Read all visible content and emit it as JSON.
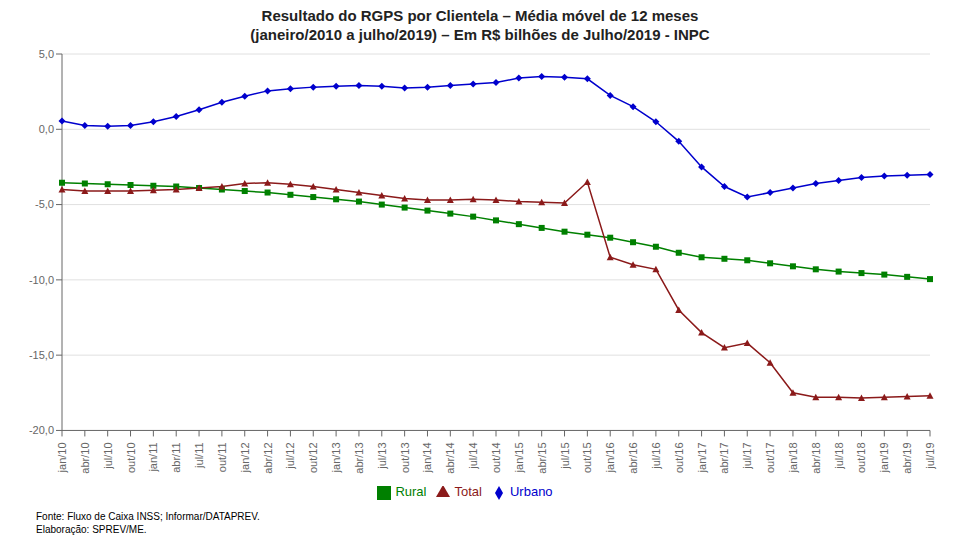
{
  "chart_data": {
    "type": "line",
    "title": "Resultado do RGPS por Clientela – Média móvel de 12 meses",
    "subtitle": "(janeiro/2010 a julho/2019) – Em R$ bilhões de Julho/2019 - INPC",
    "annotations": [
      "Fonte: Fluxo de Caixa INSS; Informar/DATAPREV.",
      "Elaboração: SPREV/ME."
    ],
    "categories": [
      "jan/10",
      "abr/10",
      "jul/10",
      "out/10",
      "jan/11",
      "abr/11",
      "jul/11",
      "out/11",
      "jan/12",
      "abr/12",
      "jul/12",
      "out/12",
      "jan/13",
      "abr/13",
      "jul/13",
      "out/13",
      "jan/14",
      "abr/14",
      "jul/14",
      "out/14",
      "jan/15",
      "abr/15",
      "jul/15",
      "out/15",
      "jan/16",
      "abr/16",
      "jul/16",
      "out/16",
      "jan/17",
      "abr/17",
      "jul/17",
      "out/17",
      "jan/18",
      "abr/18",
      "jul/18",
      "out/18",
      "jan/19",
      "abr/19",
      "jul/19"
    ],
    "series": [
      {
        "name": "Rural",
        "color": "#008000",
        "marker": "square",
        "values": [
          -3.55,
          -3.6,
          -3.65,
          -3.7,
          -3.75,
          -3.8,
          -3.9,
          -4.0,
          -4.1,
          -4.2,
          -4.35,
          -4.5,
          -4.65,
          -4.8,
          -5.0,
          -5.2,
          -5.4,
          -5.6,
          -5.8,
          -6.05,
          -6.3,
          -6.55,
          -6.8,
          -7.0,
          -7.2,
          -7.5,
          -7.8,
          -8.2,
          -8.5,
          -8.6,
          -8.7,
          -8.9,
          -9.1,
          -9.3,
          -9.45,
          -9.55,
          -9.65,
          -9.8,
          -9.95
        ]
      },
      {
        "name": "Total",
        "color": "#8B1A1A",
        "marker": "triangle",
        "values": [
          -4.0,
          -4.1,
          -4.1,
          -4.1,
          -4.05,
          -4.0,
          -3.9,
          -3.8,
          -3.6,
          -3.55,
          -3.65,
          -3.8,
          -4.0,
          -4.2,
          -4.4,
          -4.6,
          -4.7,
          -4.7,
          -4.65,
          -4.7,
          -4.8,
          -4.85,
          -4.9,
          -3.5,
          -8.5,
          -9.0,
          -9.3,
          -12.0,
          -13.5,
          -14.5,
          -14.2,
          -15.5,
          -17.5,
          -17.8,
          -17.8,
          -17.85,
          -17.8,
          -17.75,
          -17.7
        ]
      },
      {
        "name": "Urbano",
        "color": "#0000CD",
        "marker": "diamond",
        "values": [
          0.55,
          0.25,
          0.2,
          0.25,
          0.5,
          0.85,
          1.3,
          1.8,
          2.2,
          2.55,
          2.7,
          2.8,
          2.85,
          2.9,
          2.85,
          2.75,
          2.8,
          2.9,
          3.0,
          3.1,
          3.4,
          3.5,
          3.45,
          3.35,
          2.25,
          1.5,
          0.5,
          -0.8,
          -2.5,
          -3.8,
          -4.5,
          -4.2,
          -3.9,
          -3.6,
          -3.4,
          -3.2,
          -3.1,
          -3.05,
          -3.0
        ]
      }
    ],
    "ylim": [
      -20.0,
      5.0
    ],
    "yticks": [
      {
        "value": 5.0,
        "label": "5,0"
      },
      {
        "value": 0.0,
        "label": "0,0"
      },
      {
        "value": -5.0,
        "label": "-5,0"
      },
      {
        "value": -10.0,
        "label": "-10,0"
      },
      {
        "value": -15.0,
        "label": "-15,0"
      },
      {
        "value": -20.0,
        "label": "-20,0"
      }
    ],
    "grid": true,
    "legend": "bottom"
  }
}
